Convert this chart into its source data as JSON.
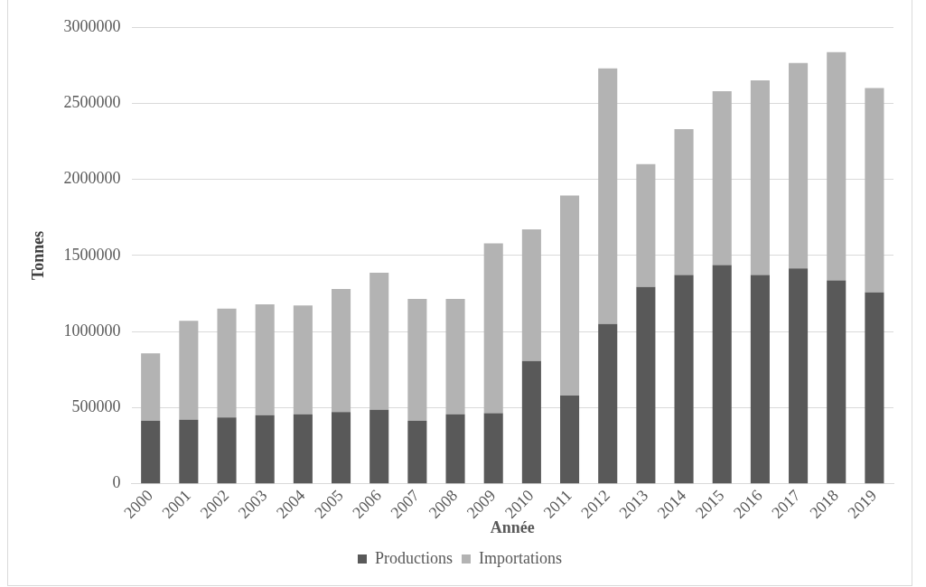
{
  "chart_data": {
    "type": "bar",
    "stacked": true,
    "xlabel": "Année",
    "ylabel": "Tonnes",
    "categories": [
      "2000",
      "2001",
      "2002",
      "2003",
      "2004",
      "2005",
      "2006",
      "2007",
      "2008",
      "2009",
      "2010",
      "2011",
      "2012",
      "2013",
      "2014",
      "2015",
      "2016",
      "2017",
      "2018",
      "2019"
    ],
    "series": [
      {
        "name": "Productions",
        "color": "#595959",
        "values": [
          414000,
          421000,
          436000,
          450000,
          457000,
          471000,
          486000,
          414000,
          457000,
          464000,
          807000,
          579000,
          1050000,
          1293000,
          1371000,
          1436000,
          1371000,
          1414000,
          1336000,
          1257000
        ]
      },
      {
        "name": "Importations",
        "color": "#b3b3b3",
        "values": [
          443000,
          650000,
          714000,
          729000,
          714000,
          808000,
          900000,
          800000,
          757000,
          1115000,
          864000,
          1314000,
          1679000,
          807000,
          958000,
          1143000,
          1279000,
          1350000,
          1500000,
          1343000
        ]
      }
    ],
    "ylim": [
      0,
      3000000
    ],
    "yticks": [
      0,
      500000,
      1000000,
      1500000,
      2000000,
      2500000,
      3000000
    ],
    "grid": "y",
    "legend": "bottom"
  }
}
